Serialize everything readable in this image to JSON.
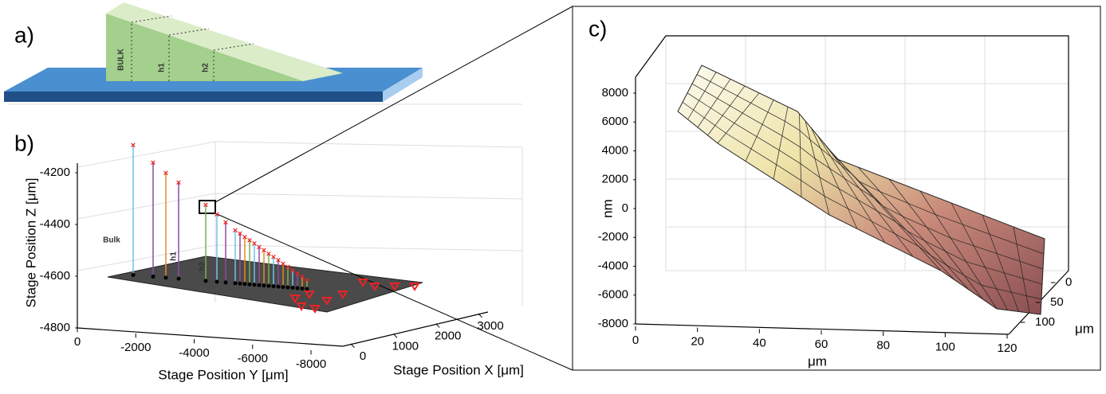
{
  "panel_a": {
    "label": "a)",
    "wedge_labels": [
      "BULK",
      "h1",
      "h2"
    ]
  },
  "panel_b": {
    "label": "b)",
    "z_axis": {
      "title": "Stage Position Z [μm]",
      "ticks": [
        -4200,
        -4400,
        -4600,
        -4800
      ]
    },
    "y_axis": {
      "title": "Stage Position Y [μm]",
      "ticks": [
        0,
        -2000,
        -4000,
        -6000,
        -8000
      ]
    },
    "x_axis": {
      "title": "Stage Position X [μm]",
      "ticks": [
        0,
        1000,
        2000,
        3000
      ]
    },
    "annotations": [
      "Bulk",
      "h1",
      "h2"
    ]
  },
  "panel_c": {
    "label": "c)",
    "z_axis": {
      "title": "nm",
      "ticks": [
        8000,
        6000,
        4000,
        2000,
        0,
        -2000,
        -4000,
        -6000,
        -8000
      ]
    },
    "x_axis": {
      "title": "μm",
      "ticks": [
        0,
        20,
        40,
        60,
        80,
        100,
        120
      ]
    },
    "y_axis": {
      "title": "μm",
      "ticks": [
        0,
        50,
        100
      ]
    }
  }
}
